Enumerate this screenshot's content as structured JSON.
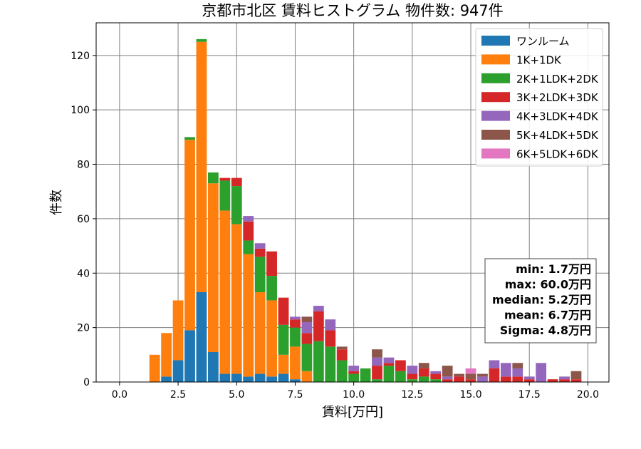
{
  "chart_data": {
    "type": "bar",
    "stacked": true,
    "title": "京都市北区 賃料ヒストグラム 物件数: 947件",
    "xlabel": "賃料[万円]",
    "ylabel": "件数",
    "xlim": [
      -1.0,
      20.9
    ],
    "ylim": [
      0,
      132
    ],
    "xticks": [
      "0.0",
      "2.5",
      "5.0",
      "7.5",
      "10.0",
      "12.5",
      "15.0",
      "17.5",
      "20.0"
    ],
    "yticks": [
      "0",
      "20",
      "40",
      "60",
      "80",
      "100",
      "120"
    ],
    "bin_width": 0.5,
    "grid": true,
    "legend_position": "top-right",
    "x": [
      1.5,
      2.0,
      2.5,
      3.0,
      3.5,
      4.0,
      4.5,
      5.0,
      5.5,
      6.0,
      6.5,
      7.0,
      7.5,
      8.0,
      8.5,
      9.0,
      9.5,
      10.0,
      10.5,
      11.0,
      11.5,
      12.0,
      12.5,
      13.0,
      13.5,
      14.0,
      14.5,
      15.0,
      15.5,
      16.0,
      16.5,
      17.0,
      17.5,
      18.0,
      18.5,
      19.0,
      19.5
    ],
    "series": [
      {
        "name": "ワンルーム",
        "color": "#1f77b4",
        "values": [
          0,
          2,
          8,
          19,
          33,
          11,
          3,
          3,
          2,
          3,
          2,
          3,
          1,
          0,
          0,
          0,
          0,
          0,
          0,
          0,
          0,
          0,
          0,
          0,
          0,
          0,
          0,
          0,
          0,
          0,
          0,
          0,
          0,
          0,
          0,
          0,
          0
        ]
      },
      {
        "name": "1K+1DK",
        "color": "#ff7f0e",
        "values": [
          10,
          16,
          22,
          70,
          92,
          62,
          60,
          55,
          45,
          30,
          28,
          7,
          12,
          4,
          0,
          0,
          0,
          0,
          0,
          0,
          0,
          0,
          0,
          0,
          0,
          0,
          0,
          0,
          0,
          0,
          0,
          0,
          0,
          0,
          0,
          0,
          0
        ]
      },
      {
        "name": "2K+1LDK+2DK",
        "color": "#2ca02c",
        "values": [
          0,
          0,
          0,
          1,
          1,
          4,
          11,
          14,
          5,
          13,
          9,
          11,
          7,
          10,
          15,
          13,
          8,
          3,
          5,
          1,
          6,
          4,
          1,
          2,
          1,
          0,
          0,
          0,
          0,
          0,
          0,
          0,
          0,
          0,
          0,
          0,
          0
        ]
      },
      {
        "name": "3K+2LDK+3DK",
        "color": "#d62728",
        "values": [
          0,
          0,
          0,
          0,
          0,
          0,
          1,
          3,
          7,
          3,
          9,
          10,
          3,
          4,
          11,
          6,
          4,
          1,
          0,
          5,
          1,
          4,
          2,
          3,
          2,
          1,
          2,
          1,
          0,
          5,
          2,
          2,
          1,
          0,
          1,
          1,
          1
        ]
      },
      {
        "name": "4K+3LDK+4DK",
        "color": "#9467bd",
        "values": [
          0,
          0,
          0,
          0,
          0,
          0,
          0,
          0,
          2,
          2,
          0,
          0,
          1,
          4,
          2,
          4,
          0,
          2,
          0,
          3,
          2,
          0,
          3,
          0,
          1,
          1,
          0,
          0,
          2,
          3,
          5,
          3,
          1,
          7,
          0,
          1,
          0
        ]
      },
      {
        "name": "5K+4LDK+5DK",
        "color": "#8c564b",
        "values": [
          0,
          0,
          0,
          0,
          0,
          0,
          0,
          0,
          0,
          0,
          0,
          0,
          0,
          2,
          0,
          0,
          1,
          0,
          0,
          3,
          0,
          0,
          0,
          2,
          0,
          4,
          1,
          2,
          1,
          0,
          0,
          2,
          0,
          0,
          0,
          0,
          3
        ]
      },
      {
        "name": "6K+5LDK+6DK",
        "color": "#e377c2",
        "values": [
          0,
          0,
          0,
          0,
          0,
          0,
          0,
          0,
          0,
          0,
          0,
          0,
          0,
          0,
          0,
          0,
          0,
          0,
          0,
          0,
          0,
          0,
          0,
          0,
          0,
          0,
          0,
          2,
          0,
          0,
          0,
          0,
          0,
          0,
          0,
          0,
          0
        ]
      }
    ],
    "stats": [
      "min: 1.7万円",
      "max: 60.0万円",
      "median: 5.2万円",
      "mean: 6.7万円",
      "Sigma: 4.8万円"
    ]
  }
}
